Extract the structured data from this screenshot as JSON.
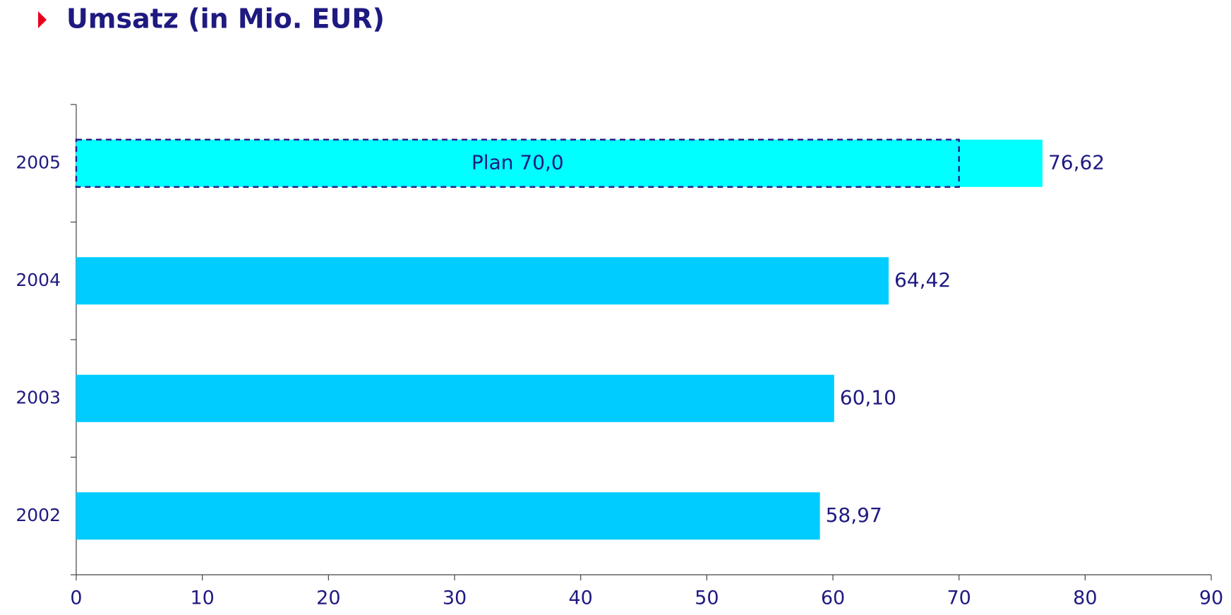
{
  "chart_data": {
    "type": "bar",
    "orientation": "horizontal",
    "title": "Umsatz (in Mio. EUR)",
    "categories": [
      "2002",
      "2003",
      "2004",
      "2005"
    ],
    "values": [
      58.97,
      60.1,
      64.42,
      76.62
    ],
    "value_labels": [
      "58,97",
      "60,10",
      "64,42",
      "76,62"
    ],
    "colors": [
      "#00ccff",
      "#00ccff",
      "#00ccff",
      "#00ffff"
    ],
    "annotation": {
      "category": "2005",
      "label": "Plan 70,0",
      "value": 70,
      "color": "#2b1f8a"
    },
    "xlim": [
      0,
      90
    ],
    "xticks": [
      0,
      10,
      20,
      30,
      40,
      50,
      60,
      70,
      80,
      90
    ],
    "grid": false
  }
}
